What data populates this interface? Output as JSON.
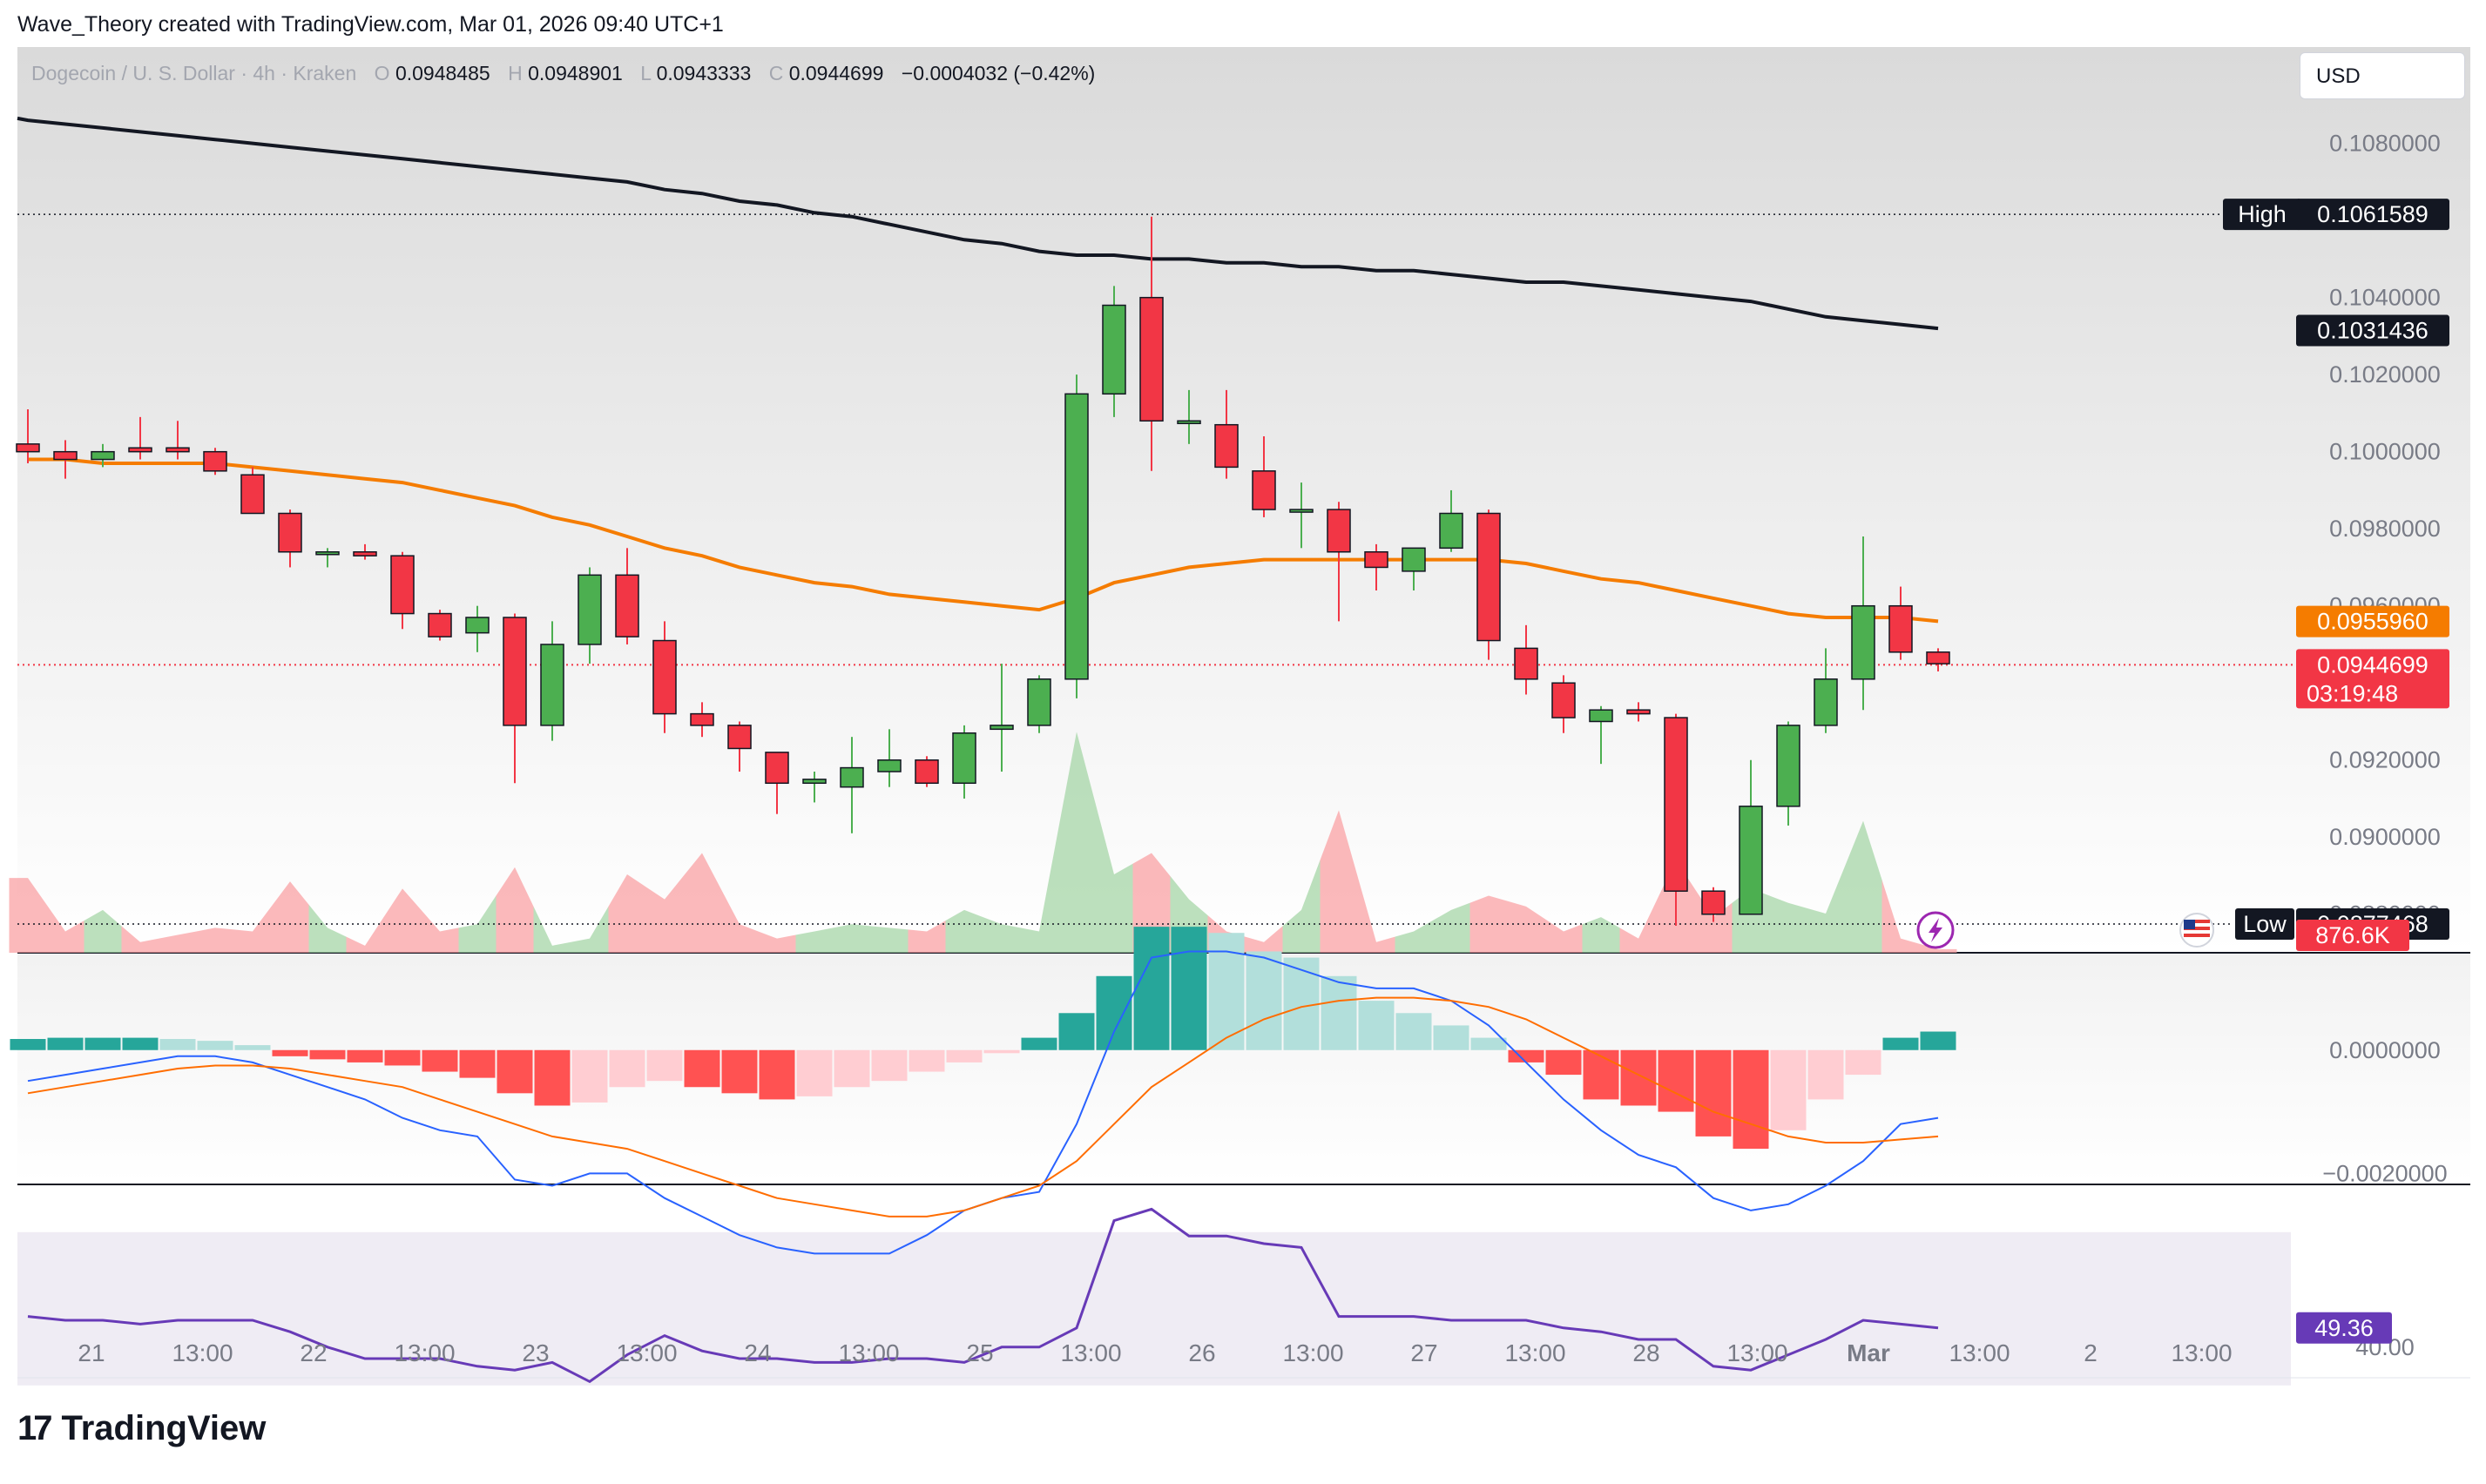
{
  "caption": "Wave_Theory created with TradingView.com, Mar 01, 2026 09:40 UTC+1",
  "header": {
    "symbol": "Dogecoin / U. S. Dollar · 4h · Kraken",
    "o_label": "O",
    "o_value": "0.0948485",
    "h_label": "H",
    "h_value": "0.0948901",
    "l_label": "L",
    "l_value": "0.0943333",
    "c_label": "C",
    "c_value": "0.0944699",
    "change": "−0.0004032 (−0.42%)"
  },
  "currency_button": "USD",
  "footer_brand": {
    "mark": "17",
    "name": "TradingView"
  },
  "colors": {
    "up": "#4caf50",
    "down": "#f23645",
    "ema_short": "#f57c00",
    "ema_long": "#131722",
    "macd": "#2962ff",
    "signal": "#ff6d00",
    "rsi": "#673ab7"
  },
  "chart_data": [
    {
      "type": "candlestick",
      "title": "Dogecoin / U. S. Dollar · 4h · Kraken",
      "ylim": [
        0.087,
        0.1105
      ],
      "y_ticks": [
        0.108,
        0.104,
        0.102,
        0.1,
        0.098,
        0.096,
        0.092,
        0.09,
        0.088
      ],
      "y_tick_labels": [
        "0.1080000",
        "0.1040000",
        "0.1020000",
        "0.1000000",
        "0.0980000",
        "0.0960000",
        "0.0920000",
        "0.0900000",
        "0.0880000"
      ],
      "x_labels": [
        "21",
        "13:00",
        "22",
        "13:00",
        "23",
        "13:00",
        "24",
        "13:00",
        "25",
        "13:00",
        "26",
        "13:00",
        "27",
        "13:00",
        "28",
        "13:00",
        "Mar",
        "13:00",
        "2",
        "13:00"
      ],
      "candles": [
        {
          "o": 0.1002,
          "h": 0.1011,
          "l": 0.0997,
          "c": 0.1
        },
        {
          "o": 0.1,
          "h": 0.1003,
          "l": 0.0993,
          "c": 0.0998
        },
        {
          "o": 0.0998,
          "h": 0.1002,
          "l": 0.0996,
          "c": 0.1
        },
        {
          "o": 0.1001,
          "h": 0.1009,
          "l": 0.0998,
          "c": 0.1
        },
        {
          "o": 0.1001,
          "h": 0.1008,
          "l": 0.0998,
          "c": 0.1
        },
        {
          "o": 0.1,
          "h": 0.1001,
          "l": 0.0994,
          "c": 0.0995
        },
        {
          "o": 0.0994,
          "h": 0.0996,
          "l": 0.0984,
          "c": 0.0984
        },
        {
          "o": 0.0984,
          "h": 0.0985,
          "l": 0.097,
          "c": 0.0974
        },
        {
          "o": 0.0974,
          "h": 0.0975,
          "l": 0.097,
          "c": 0.0974
        },
        {
          "o": 0.0974,
          "h": 0.0976,
          "l": 0.0972,
          "c": 0.0973
        },
        {
          "o": 0.0973,
          "h": 0.0974,
          "l": 0.0954,
          "c": 0.0958
        },
        {
          "o": 0.0958,
          "h": 0.0959,
          "l": 0.0951,
          "c": 0.0952
        },
        {
          "o": 0.0953,
          "h": 0.096,
          "l": 0.0948,
          "c": 0.0957
        },
        {
          "o": 0.0957,
          "h": 0.0958,
          "l": 0.0914,
          "c": 0.0929
        },
        {
          "o": 0.0929,
          "h": 0.0956,
          "l": 0.0925,
          "c": 0.095
        },
        {
          "o": 0.095,
          "h": 0.097,
          "l": 0.0945,
          "c": 0.0968
        },
        {
          "o": 0.0968,
          "h": 0.0975,
          "l": 0.095,
          "c": 0.0952
        },
        {
          "o": 0.0951,
          "h": 0.0956,
          "l": 0.0927,
          "c": 0.0932
        },
        {
          "o": 0.0932,
          "h": 0.0935,
          "l": 0.0926,
          "c": 0.0929
        },
        {
          "o": 0.0929,
          "h": 0.093,
          "l": 0.0917,
          "c": 0.0923
        },
        {
          "o": 0.0922,
          "h": 0.0922,
          "l": 0.0906,
          "c": 0.0914
        },
        {
          "o": 0.0914,
          "h": 0.0917,
          "l": 0.0909,
          "c": 0.0915
        },
        {
          "o": 0.0913,
          "h": 0.0926,
          "l": 0.0901,
          "c": 0.0918
        },
        {
          "o": 0.0917,
          "h": 0.0928,
          "l": 0.0913,
          "c": 0.092
        },
        {
          "o": 0.092,
          "h": 0.0921,
          "l": 0.0913,
          "c": 0.0914
        },
        {
          "o": 0.0914,
          "h": 0.0929,
          "l": 0.091,
          "c": 0.0927
        },
        {
          "o": 0.0928,
          "h": 0.0945,
          "l": 0.0917,
          "c": 0.0929
        },
        {
          "o": 0.0929,
          "h": 0.0942,
          "l": 0.0927,
          "c": 0.0941
        },
        {
          "o": 0.0941,
          "h": 0.102,
          "l": 0.0936,
          "c": 0.1015
        },
        {
          "o": 0.1015,
          "h": 0.1043,
          "l": 0.1009,
          "c": 0.1038
        },
        {
          "o": 0.104,
          "h": 0.1061,
          "l": 0.0995,
          "c": 0.1008
        },
        {
          "o": 0.1008,
          "h": 0.1016,
          "l": 0.1002,
          "c": 0.1008
        },
        {
          "o": 0.1007,
          "h": 0.1016,
          "l": 0.0993,
          "c": 0.0996
        },
        {
          "o": 0.0995,
          "h": 0.1004,
          "l": 0.0983,
          "c": 0.0985
        },
        {
          "o": 0.0985,
          "h": 0.0992,
          "l": 0.0975,
          "c": 0.0985
        },
        {
          "o": 0.0985,
          "h": 0.0987,
          "l": 0.0956,
          "c": 0.0974
        },
        {
          "o": 0.0974,
          "h": 0.0976,
          "l": 0.0964,
          "c": 0.097
        },
        {
          "o": 0.0969,
          "h": 0.0975,
          "l": 0.0964,
          "c": 0.0975
        },
        {
          "o": 0.0975,
          "h": 0.099,
          "l": 0.0974,
          "c": 0.0984
        },
        {
          "o": 0.0984,
          "h": 0.0985,
          "l": 0.0946,
          "c": 0.0951
        },
        {
          "o": 0.0949,
          "h": 0.0955,
          "l": 0.0937,
          "c": 0.0941
        },
        {
          "o": 0.094,
          "h": 0.0942,
          "l": 0.0927,
          "c": 0.0931
        },
        {
          "o": 0.093,
          "h": 0.0934,
          "l": 0.0919,
          "c": 0.0933
        },
        {
          "o": 0.0933,
          "h": 0.0935,
          "l": 0.093,
          "c": 0.0932
        },
        {
          "o": 0.0931,
          "h": 0.0932,
          "l": 0.0877,
          "c": 0.0886
        },
        {
          "o": 0.0886,
          "h": 0.0887,
          "l": 0.0878,
          "c": 0.088
        },
        {
          "o": 0.088,
          "h": 0.092,
          "l": 0.088,
          "c": 0.0908
        },
        {
          "o": 0.0908,
          "h": 0.093,
          "l": 0.0903,
          "c": 0.0929
        },
        {
          "o": 0.0929,
          "h": 0.0949,
          "l": 0.0927,
          "c": 0.0941
        },
        {
          "o": 0.0941,
          "h": 0.0978,
          "l": 0.0933,
          "c": 0.096
        },
        {
          "o": 0.096,
          "h": 0.0965,
          "l": 0.0946,
          "c": 0.0948
        },
        {
          "o": 0.0948,
          "h": 0.0949,
          "l": 0.0943,
          "c": 0.0945
        }
      ],
      "ema_short": [
        0.0998,
        0.0998,
        0.0997,
        0.0997,
        0.0997,
        0.0997,
        0.0996,
        0.0995,
        0.0994,
        0.0993,
        0.0992,
        0.099,
        0.0988,
        0.0986,
        0.0983,
        0.0981,
        0.0978,
        0.0975,
        0.0973,
        0.097,
        0.0968,
        0.0966,
        0.0965,
        0.0963,
        0.0962,
        0.0961,
        0.096,
        0.0959,
        0.0962,
        0.0966,
        0.0968,
        0.097,
        0.0971,
        0.0972,
        0.0972,
        0.0972,
        0.0972,
        0.0972,
        0.0972,
        0.0972,
        0.0971,
        0.0969,
        0.0967,
        0.0966,
        0.0964,
        0.0962,
        0.096,
        0.0958,
        0.0957,
        0.0957,
        0.0957,
        0.0956
      ],
      "ema_long": [
        0.1086,
        0.1085,
        0.1084,
        0.1083,
        0.1082,
        0.1081,
        0.108,
        0.1079,
        0.1078,
        0.1077,
        0.1076,
        0.1075,
        0.1074,
        0.1073,
        0.1072,
        0.1071,
        0.107,
        0.1068,
        0.1067,
        0.1065,
        0.1064,
        0.1062,
        0.1061,
        0.1059,
        0.1057,
        0.1055,
        0.1054,
        0.1052,
        0.1051,
        0.1051,
        0.105,
        0.105,
        0.1049,
        0.1049,
        0.1048,
        0.1048,
        0.1047,
        0.1047,
        0.1046,
        0.1045,
        0.1044,
        0.1044,
        0.1043,
        0.1042,
        0.1041,
        0.104,
        0.1039,
        0.1037,
        0.1035,
        0.1034,
        0.1033,
        0.1032
      ],
      "volume": [
        210,
        60,
        120,
        30,
        50,
        70,
        60,
        200,
        70,
        20,
        180,
        60,
        80,
        240,
        20,
        40,
        220,
        150,
        280,
        80,
        40,
        60,
        80,
        70,
        60,
        120,
        80,
        60,
        620,
        220,
        280,
        150,
        60,
        30,
        120,
        400,
        30,
        60,
        120,
        160,
        130,
        60,
        100,
        40,
        260,
        100,
        180,
        140,
        110,
        370,
        40,
        10
      ],
      "volume_max": 880,
      "high": {
        "label": "High",
        "value": "0.1061589",
        "price": 0.1061589
      },
      "low": {
        "label": "Low",
        "value": "0.0877468",
        "price": 0.0877468
      },
      "ema_long_badge": {
        "value": "0.1031436",
        "price": 0.1031436
      },
      "ema_short_badge": {
        "value": "0.0955960",
        "price": 0.095596
      },
      "last_price_badge": {
        "value": "0.0944699",
        "countdown": "03:19:48",
        "price": 0.0944699
      },
      "volume_badge": {
        "value": "876.6K"
      }
    },
    {
      "type": "macd",
      "ylim": [
        -0.00215,
        0.00155
      ],
      "y_ticks": [
        0.0,
        -0.002
      ],
      "y_tick_labels": [
        "0.0000000",
        "−0.0020000"
      ],
      "histogram": [
        0.00018,
        0.0002,
        0.0002,
        0.0002,
        0.00018,
        0.00015,
        8e-05,
        -0.0001,
        -0.00015,
        -0.0002,
        -0.00025,
        -0.00035,
        -0.00045,
        -0.0007,
        -0.0009,
        -0.00085,
        -0.0006,
        -0.0005,
        -0.0006,
        -0.0007,
        -0.0008,
        -0.00075,
        -0.0006,
        -0.0005,
        -0.00035,
        -0.0002,
        -5e-05,
        0.0002,
        0.0006,
        0.0012,
        0.002,
        0.002,
        0.0019,
        0.0016,
        0.0015,
        0.0012,
        0.0008,
        0.0006,
        0.0004,
        0.0002,
        -0.0002,
        -0.0004,
        -0.0008,
        -0.0009,
        -0.001,
        -0.0014,
        -0.0016,
        -0.0013,
        -0.0008,
        -0.0004,
        0.0002,
        0.0003
      ],
      "macd": [
        -0.0005,
        -0.0004,
        -0.0003,
        -0.0002,
        -0.0001,
        -0.0001,
        -0.0002,
        -0.0004,
        -0.0006,
        -0.0008,
        -0.0011,
        -0.0013,
        -0.0014,
        -0.0021,
        -0.0022,
        -0.002,
        -0.002,
        -0.0024,
        -0.0027,
        -0.003,
        -0.0032,
        -0.0033,
        -0.0033,
        -0.0033,
        -0.003,
        -0.0026,
        -0.0024,
        -0.0023,
        -0.0012,
        0.0003,
        0.0015,
        0.0016,
        0.0016,
        0.0015,
        0.0013,
        0.0011,
        0.001,
        0.001,
        0.0008,
        0.0004,
        -0.0002,
        -0.0008,
        -0.0013,
        -0.0017,
        -0.0019,
        -0.0024,
        -0.0026,
        -0.0025,
        -0.0022,
        -0.0018,
        -0.0012,
        -0.0011
      ],
      "signal": [
        -0.0007,
        -0.0006,
        -0.0005,
        -0.0004,
        -0.0003,
        -0.00025,
        -0.00025,
        -0.0003,
        -0.0004,
        -0.0005,
        -0.0006,
        -0.0008,
        -0.001,
        -0.0012,
        -0.0014,
        -0.0015,
        -0.0016,
        -0.0018,
        -0.002,
        -0.0022,
        -0.0024,
        -0.0025,
        -0.0026,
        -0.0027,
        -0.0027,
        -0.0026,
        -0.0024,
        -0.0022,
        -0.0018,
        -0.0012,
        -0.0006,
        -0.0002,
        0.0002,
        0.0005,
        0.0007,
        0.0008,
        0.00085,
        0.00085,
        0.0008,
        0.0007,
        0.0005,
        0.0002,
        -0.0001,
        -0.0004,
        -0.0007,
        -0.001,
        -0.0012,
        -0.0014,
        -0.0015,
        -0.0015,
        -0.00145,
        -0.0014
      ]
    },
    {
      "type": "line",
      "ylim": [
        32,
        82
      ],
      "y_ticks": [
        40.0
      ],
      "y_tick_labels": [
        "40.00"
      ],
      "rsi_band": [
        30,
        70
      ],
      "values": [
        48,
        47,
        47,
        46,
        47,
        47,
        47,
        44,
        40,
        37,
        37,
        37,
        35,
        34,
        36,
        31,
        38,
        43,
        39,
        37,
        37,
        36,
        36,
        37,
        37,
        36,
        40,
        40,
        45,
        73,
        76,
        69,
        69,
        67,
        66,
        48,
        48,
        48,
        47,
        47,
        47,
        45,
        44,
        42,
        42,
        35,
        34,
        38,
        42,
        47,
        46,
        45
      ],
      "last_badge": {
        "value": "49.36"
      }
    }
  ]
}
